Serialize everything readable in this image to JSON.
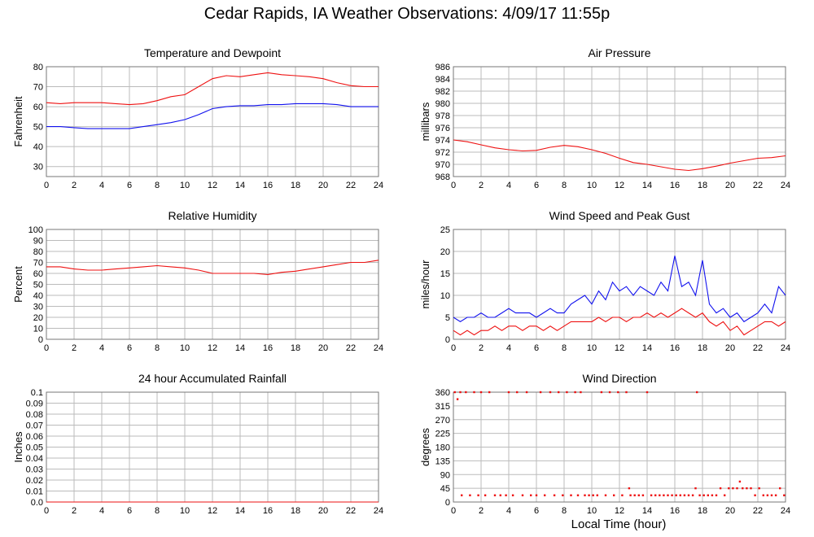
{
  "page_title": "Cedar Rapids, IA Weather Observations: 4/09/17 11:55p",
  "x_axis_title": "Local Time (hour)",
  "colors": {
    "red": "#ee1111",
    "blue": "#1111ee",
    "grid": "#bbbbbb"
  },
  "x_ticks": [
    "0",
    "2",
    "4",
    "6",
    "8",
    "10",
    "12",
    "14",
    "16",
    "18",
    "20",
    "22",
    "24"
  ],
  "chart_data": [
    {
      "id": "temp",
      "type": "line",
      "title": "Temperature and Dewpoint",
      "ylabel": "Fahrenheit",
      "xlim": [
        0,
        24
      ],
      "ylim": [
        25,
        80
      ],
      "yticks": [
        "30",
        "40",
        "50",
        "60",
        "70",
        "80"
      ],
      "series": [
        {
          "color": "#ee1111",
          "x": [
            0,
            1,
            2,
            3,
            4,
            5,
            6,
            7,
            8,
            9,
            10,
            11,
            12,
            13,
            14,
            15,
            16,
            17,
            18,
            19,
            20,
            21,
            22,
            23,
            24
          ],
          "y": [
            62,
            61.5,
            62,
            62,
            62,
            61.5,
            61,
            61.5,
            63,
            65,
            66,
            70,
            74,
            75.5,
            75,
            76,
            77,
            76,
            75.5,
            75,
            74,
            72,
            70.5,
            70,
            70
          ]
        },
        {
          "color": "#1111ee",
          "x": [
            0,
            1,
            2,
            3,
            4,
            5,
            6,
            7,
            8,
            9,
            10,
            11,
            12,
            13,
            14,
            15,
            16,
            17,
            18,
            19,
            20,
            21,
            22,
            23,
            24
          ],
          "y": [
            50,
            50,
            49.5,
            49,
            49,
            49,
            49,
            50,
            51,
            52,
            53.5,
            56,
            59,
            60,
            60.5,
            60.5,
            61,
            61,
            61.5,
            61.5,
            61.5,
            61,
            60,
            60,
            60
          ]
        }
      ]
    },
    {
      "id": "pressure",
      "type": "line",
      "title": "Air Pressure",
      "ylabel": "millibars",
      "xlim": [
        0,
        24
      ],
      "ylim": [
        968,
        986
      ],
      "yticks": [
        "968",
        "970",
        "972",
        "974",
        "976",
        "978",
        "980",
        "982",
        "984",
        "986"
      ],
      "series": [
        {
          "color": "#ee1111",
          "x": [
            0,
            1,
            2,
            3,
            4,
            5,
            6,
            7,
            8,
            9,
            10,
            11,
            12,
            13,
            14,
            15,
            16,
            17,
            18,
            19,
            20,
            21,
            22,
            23,
            24
          ],
          "y": [
            974,
            973.7,
            973.2,
            972.7,
            972.4,
            972.2,
            972.3,
            972.8,
            973.1,
            972.9,
            972.4,
            971.8,
            971,
            970.3,
            970,
            969.6,
            969.2,
            969,
            969.3,
            969.7,
            970.2,
            970.6,
            971,
            971.1,
            971.4
          ]
        }
      ]
    },
    {
      "id": "humidity",
      "type": "line",
      "title": "Relative Humidity",
      "ylabel": "Percent",
      "xlim": [
        0,
        24
      ],
      "ylim": [
        0,
        100
      ],
      "yticks": [
        "0",
        "10",
        "20",
        "30",
        "40",
        "50",
        "60",
        "70",
        "80",
        "90",
        "100"
      ],
      "series": [
        {
          "color": "#ee1111",
          "x": [
            0,
            1,
            2,
            3,
            4,
            5,
            6,
            7,
            8,
            9,
            10,
            11,
            12,
            13,
            14,
            15,
            16,
            17,
            18,
            19,
            20,
            21,
            22,
            23,
            24
          ],
          "y": [
            66,
            66,
            64,
            63,
            63,
            64,
            65,
            66,
            67,
            66,
            65,
            63,
            60,
            60,
            60,
            60,
            59,
            61,
            62,
            64,
            66,
            68,
            70,
            70,
            72
          ]
        }
      ]
    },
    {
      "id": "wind",
      "type": "line",
      "title": "Wind Speed and Peak Gust",
      "ylabel": "miles/hour",
      "xlim": [
        0,
        24
      ],
      "ylim": [
        0,
        25
      ],
      "yticks": [
        "0",
        "5",
        "10",
        "15",
        "20",
        "25"
      ],
      "series": [
        {
          "color": "#1111ee",
          "x": [
            0,
            0.5,
            1,
            1.5,
            2,
            2.5,
            3,
            3.5,
            4,
            4.5,
            5,
            5.5,
            6,
            6.5,
            7,
            7.5,
            8,
            8.5,
            9,
            9.5,
            10,
            10.5,
            11,
            11.5,
            12,
            12.5,
            13,
            13.5,
            14,
            14.5,
            15,
            15.5,
            16,
            16.5,
            17,
            17.5,
            18,
            18.5,
            19,
            19.5,
            20,
            20.5,
            21,
            21.5,
            22,
            22.5,
            23,
            23.5,
            24
          ],
          "y": [
            5,
            4,
            5,
            5,
            6,
            5,
            5,
            6,
            7,
            6,
            6,
            6,
            5,
            6,
            7,
            6,
            6,
            8,
            9,
            10,
            8,
            11,
            9,
            13,
            11,
            12,
            10,
            12,
            11,
            10,
            13,
            11,
            19,
            12,
            13,
            10,
            18,
            8,
            6,
            7,
            5,
            6,
            4,
            5,
            6,
            8,
            6,
            12,
            10
          ]
        },
        {
          "color": "#ee1111",
          "x": [
            0,
            0.5,
            1,
            1.5,
            2,
            2.5,
            3,
            3.5,
            4,
            4.5,
            5,
            5.5,
            6,
            6.5,
            7,
            7.5,
            8,
            8.5,
            9,
            9.5,
            10,
            10.5,
            11,
            11.5,
            12,
            12.5,
            13,
            13.5,
            14,
            14.5,
            15,
            15.5,
            16,
            16.5,
            17,
            17.5,
            18,
            18.5,
            19,
            19.5,
            20,
            20.5,
            21,
            21.5,
            22,
            22.5,
            23,
            23.5,
            24
          ],
          "y": [
            2,
            1,
            2,
            1,
            2,
            2,
            3,
            2,
            3,
            3,
            2,
            3,
            3,
            2,
            3,
            2,
            3,
            4,
            4,
            4,
            4,
            5,
            4,
            5,
            5,
            4,
            5,
            5,
            6,
            5,
            6,
            5,
            6,
            7,
            6,
            5,
            6,
            4,
            3,
            4,
            2,
            3,
            1,
            2,
            3,
            4,
            4,
            3,
            4
          ]
        }
      ]
    },
    {
      "id": "rain",
      "type": "line",
      "title": "24 hour Accumulated Rainfall",
      "ylabel": "Inches",
      "xlim": [
        0,
        24
      ],
      "ylim": [
        0,
        0.1
      ],
      "yticks": [
        "0.0",
        "0.01",
        "0.02",
        "0.03",
        "0.04",
        "0.05",
        "0.06",
        "0.07",
        "0.08",
        "0.09",
        "0.1"
      ],
      "series": [
        {
          "color": "#ee1111",
          "x": [
            0,
            24
          ],
          "y": [
            0,
            0
          ]
        }
      ]
    },
    {
      "id": "direction",
      "type": "scatter",
      "title": "Wind Direction",
      "ylabel": "degrees",
      "xlim": [
        0,
        24
      ],
      "ylim": [
        0,
        360
      ],
      "yticks": [
        "0",
        "45",
        "90",
        "135",
        "180",
        "225",
        "270",
        "315",
        "360"
      ],
      "series": [
        {
          "color": "#ee1111",
          "x": [
            0.1,
            0.3,
            0.5,
            0.6,
            0.9,
            1.2,
            1.5,
            1.8,
            2.0,
            2.3,
            2.6,
            3.0,
            3.4,
            3.8,
            4.0,
            4.3,
            4.6,
            5.0,
            5.3,
            5.6,
            6.0,
            6.3,
            6.6,
            7.0,
            7.3,
            7.6,
            7.9,
            8.2,
            8.5,
            8.8,
            9.0,
            9.2,
            9.5,
            9.8,
            10.1,
            10.4,
            10.7,
            11.0,
            11.3,
            11.6,
            11.9,
            12.2,
            12.5,
            12.7,
            12.8,
            13.1,
            13.4,
            13.7,
            14.0,
            14.3,
            14.6,
            14.9,
            15.2,
            15.5,
            15.8,
            16.1,
            16.4,
            16.7,
            17.0,
            17.3,
            17.5,
            17.6,
            17.8,
            18.1,
            18.4,
            18.7,
            19.0,
            19.3,
            19.6,
            19.9,
            20.2,
            20.5,
            20.7,
            20.9,
            21.2,
            21.5,
            21.8,
            22.1,
            22.4,
            22.7,
            23.0,
            23.3,
            23.6,
            23.9
          ],
          "y": [
            360,
            337,
            360,
            22,
            360,
            22,
            360,
            22,
            360,
            22,
            360,
            22,
            22,
            22,
            360,
            22,
            360,
            22,
            360,
            22,
            22,
            360,
            22,
            360,
            22,
            360,
            22,
            360,
            22,
            360,
            22,
            360,
            22,
            22,
            22,
            22,
            360,
            22,
            360,
            22,
            360,
            22,
            360,
            45,
            22,
            22,
            22,
            22,
            360,
            22,
            22,
            22,
            22,
            22,
            22,
            22,
            22,
            22,
            22,
            22,
            45,
            360,
            22,
            22,
            22,
            22,
            22,
            45,
            22,
            45,
            45,
            45,
            67,
            45,
            45,
            45,
            22,
            45,
            22,
            22,
            22,
            22,
            45,
            22
          ]
        }
      ]
    }
  ]
}
